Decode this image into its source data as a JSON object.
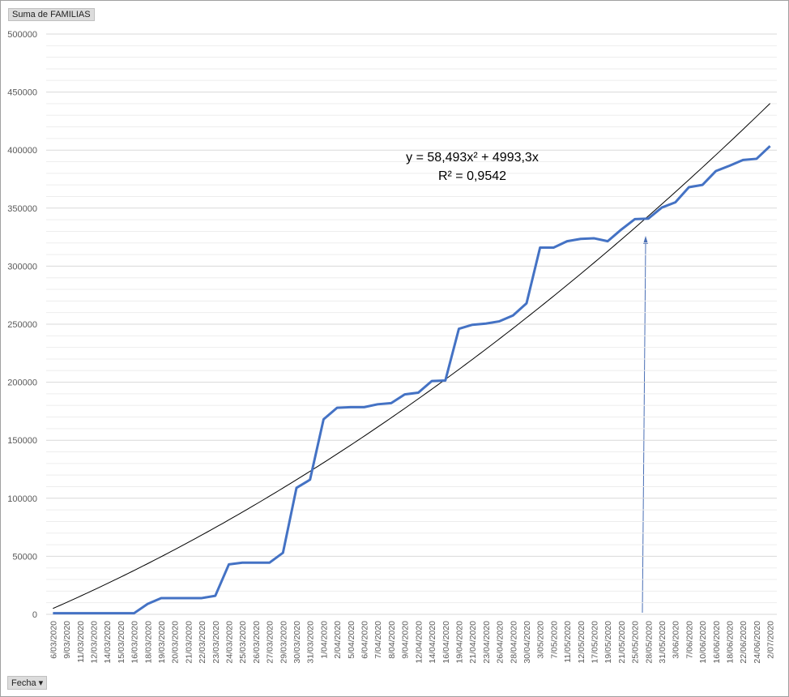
{
  "chart_data": {
    "type": "line",
    "field_button": "Suma de FAMILIAS",
    "axis_button": "Fecha",
    "categories": [
      "6/03/2020",
      "9/03/2020",
      "11/03/2020",
      "12/03/2020",
      "14/03/2020",
      "15/03/2020",
      "16/03/2020",
      "18/03/2020",
      "19/03/2020",
      "20/03/2020",
      "21/03/2020",
      "22/03/2020",
      "23/03/2020",
      "24/03/2020",
      "25/03/2020",
      "26/03/2020",
      "27/03/2020",
      "29/03/2020",
      "30/03/2020",
      "31/03/2020",
      "1/04/2020",
      "2/04/2020",
      "5/04/2020",
      "6/04/2020",
      "7/04/2020",
      "8/04/2020",
      "9/04/2020",
      "12/04/2020",
      "14/04/2020",
      "16/04/2020",
      "19/04/2020",
      "21/04/2020",
      "23/04/2020",
      "26/04/2020",
      "28/04/2020",
      "30/04/2020",
      "3/05/2020",
      "7/05/2020",
      "11/05/2020",
      "12/05/2020",
      "17/05/2020",
      "19/05/2020",
      "21/05/2020",
      "25/05/2020",
      "28/05/2020",
      "31/05/2020",
      "3/06/2020",
      "7/06/2020",
      "10/06/2020",
      "16/06/2020",
      "18/06/2020",
      "22/06/2020",
      "24/06/2020",
      "2/07/2020"
    ],
    "series": [
      {
        "color": "#4472c4",
        "values": [
          1000,
          1000,
          1000,
          1000,
          1000,
          1000,
          1000,
          9000,
          14000,
          14000,
          14000,
          14000,
          16000,
          43000,
          44500,
          44500,
          44500,
          53000,
          109000,
          116000,
          168000,
          178000,
          178500,
          178500,
          181000,
          182000,
          189500,
          191000,
          201000,
          201500,
          246000,
          249500,
          250500,
          252500,
          257500,
          268000,
          316000,
          316000,
          321500,
          323500,
          324000,
          321500,
          331500,
          340500,
          341000,
          350500,
          355000,
          368000,
          370000,
          382000,
          386500,
          391500,
          392500,
          403500
        ]
      }
    ],
    "trendline": {
      "type": "polynomial",
      "coefficients": [
        0,
        4993.3,
        58.493
      ],
      "color": "#000000",
      "equation": "y = 58,493x² + 4993,3x",
      "r_squared": "R² = 0,9542"
    },
    "ylim": [
      0,
      500000
    ],
    "yticks": [
      0,
      50000,
      100000,
      150000,
      200000,
      250000,
      300000,
      350000,
      400000,
      450000,
      500000
    ],
    "grid": true,
    "minor_grid": true
  }
}
